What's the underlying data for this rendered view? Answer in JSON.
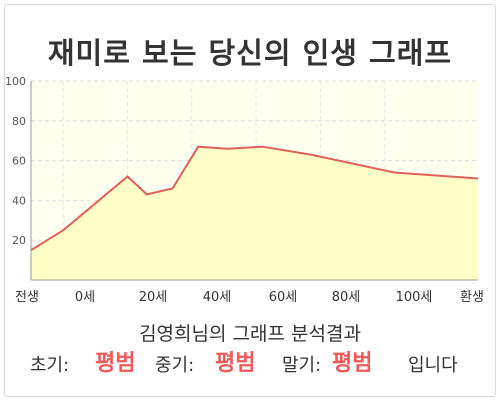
{
  "title": "재미로 보는 당신의 인생 그래프",
  "subtitle": "김영희님의 그래프 분석결과",
  "results": {
    "early_label": "초기:",
    "early_value": "평범",
    "middle_label": "중기:",
    "middle_value": "평범",
    "late_label": "말기:",
    "late_value": "평범",
    "suffix": "입니다"
  },
  "colors": {
    "line": "#e0605a",
    "fill": "#ffffc8",
    "plot_bg": "#fffff0",
    "grid": "#dddddd",
    "highlight": "#f05a5a"
  },
  "chart_data": {
    "type": "area",
    "x_labels": [
      "전생",
      "0세",
      "20세",
      "40세",
      "60세",
      "80세",
      "100세",
      "환생"
    ],
    "x": [
      -17,
      -7,
      13,
      19,
      27,
      35,
      44,
      55,
      70,
      96,
      122
    ],
    "y": [
      15,
      25,
      52,
      43,
      46,
      67,
      66,
      67,
      63,
      54,
      51
    ],
    "ylim": [
      0,
      100
    ],
    "y_ticks": [
      20,
      40,
      60,
      80,
      100
    ],
    "xlim": [
      -17,
      122
    ],
    "grid": true
  }
}
